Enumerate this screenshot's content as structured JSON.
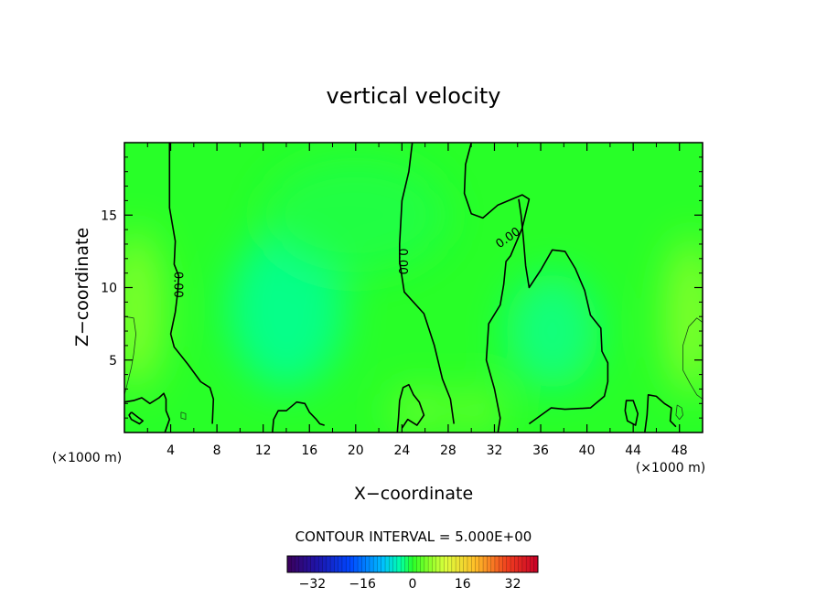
{
  "chart_data": {
    "type": "contour",
    "title": "vertical velocity",
    "xlabel": "X−coordinate",
    "ylabel": "Z−coordinate",
    "x_unit_left": "(×1000 m)",
    "x_unit_right": "(×1000 m)",
    "xlim": [
      0,
      50
    ],
    "ylim": [
      0,
      20
    ],
    "x_ticks": [
      4,
      8,
      12,
      16,
      20,
      24,
      28,
      32,
      36,
      40,
      44,
      48
    ],
    "x_tick_labels": [
      "4",
      "8",
      "12",
      "16",
      "20",
      "24",
      "28",
      "32",
      "36",
      "40",
      "44",
      "48"
    ],
    "y_ticks": [
      5,
      10,
      15
    ],
    "y_tick_labels": [
      "5",
      "10",
      "15"
    ],
    "contour_labels": [
      {
        "text": "0.00",
        "x": 4.6,
        "z": 10.2,
        "rotate": 90
      },
      {
        "text": "0.00",
        "x": 24.0,
        "z": 11.8,
        "rotate": 90
      },
      {
        "text": "0.00",
        "x": 33.2,
        "z": 13.4,
        "rotate": -35
      }
    ],
    "zero_contours": [
      [
        [
          3.9,
          20
        ],
        [
          3.9,
          15.5
        ],
        [
          4.4,
          13.2
        ],
        [
          4.3,
          11.6
        ],
        [
          4.7,
          10.8
        ],
        [
          4.6,
          9.6
        ],
        [
          4.4,
          8.3
        ],
        [
          4.0,
          6.8
        ],
        [
          4.3,
          5.9
        ],
        [
          5.5,
          4.7
        ],
        [
          6.6,
          3.5
        ],
        [
          7.4,
          3.1
        ],
        [
          7.7,
          2.3
        ],
        [
          7.6,
          0.6
        ]
      ],
      [
        [
          24.9,
          20
        ],
        [
          24.6,
          18
        ],
        [
          24.0,
          16
        ],
        [
          23.8,
          13
        ],
        [
          23.8,
          11.8
        ],
        [
          24.2,
          9.7
        ],
        [
          25.9,
          8.2
        ],
        [
          26.8,
          6.0
        ],
        [
          27.5,
          3.7
        ],
        [
          28.2,
          2.3
        ],
        [
          28.5,
          0.6
        ]
      ],
      [
        [
          30.0,
          20
        ],
        [
          29.5,
          18.5
        ],
        [
          29.4,
          16.5
        ],
        [
          30.0,
          15.1
        ],
        [
          31.0,
          14.8
        ],
        [
          32.3,
          15.7
        ],
        [
          34.4,
          16.4
        ],
        [
          35.0,
          16.1
        ],
        [
          34.4,
          14.1
        ],
        [
          33.4,
          12.2
        ],
        [
          33.0,
          11.8
        ],
        [
          32.8,
          10.2
        ],
        [
          32.5,
          8.8
        ],
        [
          31.5,
          7.5
        ],
        [
          31.3,
          5.0
        ],
        [
          32.0,
          3.0
        ],
        [
          32.5,
          1.0
        ],
        [
          32.3,
          0
        ]
      ],
      [
        [
          34.1,
          16.1
        ],
        [
          34.3,
          15
        ],
        [
          34.5,
          13.4
        ],
        [
          34.7,
          11.5
        ],
        [
          35.0,
          10.0
        ],
        [
          36.0,
          11.2
        ],
        [
          37.0,
          12.6
        ],
        [
          38.1,
          12.5
        ],
        [
          39.0,
          11.3
        ],
        [
          39.8,
          9.8
        ],
        [
          40.3,
          8.1
        ],
        [
          41.2,
          7.2
        ],
        [
          41.3,
          5.6
        ],
        [
          41.8,
          4.8
        ],
        [
          41.8,
          3.5
        ],
        [
          41.5,
          2.5
        ],
        [
          40.3,
          1.7
        ],
        [
          38.1,
          1.6
        ],
        [
          36.9,
          1.7
        ],
        [
          35.0,
          0.6
        ]
      ],
      [
        [
          0,
          2.1
        ],
        [
          0.8,
          2.2
        ],
        [
          1.5,
          2.4
        ],
        [
          2.2,
          2.0
        ],
        [
          3.0,
          2.4
        ],
        [
          3.4,
          2.7
        ],
        [
          3.6,
          2.3
        ],
        [
          3.6,
          1.5
        ],
        [
          3.9,
          0.9
        ],
        [
          3.5,
          0
        ]
      ],
      [
        [
          0.6,
          1.4
        ],
        [
          1.1,
          1.1
        ],
        [
          1.6,
          0.8
        ],
        [
          1.3,
          0.6
        ],
        [
          0.6,
          0.9
        ],
        [
          0.4,
          1.2
        ],
        [
          0.6,
          1.4
        ]
      ],
      [
        [
          12.8,
          0
        ],
        [
          12.9,
          0.9
        ],
        [
          13.3,
          1.5
        ],
        [
          14.0,
          1.5
        ],
        [
          14.9,
          2.1
        ],
        [
          15.6,
          2.0
        ],
        [
          16.0,
          1.4
        ],
        [
          16.6,
          0.9
        ],
        [
          16.9,
          0.6
        ],
        [
          17.3,
          0.5
        ]
      ],
      [
        [
          23.6,
          0
        ],
        [
          23.7,
          1.0
        ],
        [
          23.8,
          2.2
        ],
        [
          24.1,
          3.1
        ],
        [
          24.6,
          3.3
        ],
        [
          25.0,
          2.6
        ],
        [
          25.5,
          2.1
        ],
        [
          25.9,
          1.2
        ],
        [
          25.3,
          0.5
        ],
        [
          24.5,
          0.9
        ],
        [
          24.0,
          0.3
        ]
      ],
      [
        [
          43.3,
          1.5
        ],
        [
          43.4,
          2.2
        ],
        [
          44.0,
          2.2
        ],
        [
          44.4,
          1.3
        ],
        [
          44.2,
          0.5
        ],
        [
          43.5,
          0.8
        ],
        [
          43.3,
          1.5
        ]
      ],
      [
        [
          45.0,
          0
        ],
        [
          45.2,
          1.2
        ],
        [
          45.3,
          2.6
        ],
        [
          46.0,
          2.5
        ],
        [
          46.7,
          2.0
        ],
        [
          47.3,
          1.7
        ],
        [
          47.2,
          0.8
        ],
        [
          47.7,
          0.4
        ]
      ]
    ],
    "thin_contours": [
      [
        [
          0,
          8.0
        ],
        [
          0.8,
          7.9
        ],
        [
          1.0,
          6.8
        ],
        [
          0.8,
          5.4
        ],
        [
          0.6,
          4.5
        ],
        [
          0.2,
          3.2
        ],
        [
          0,
          2.6
        ]
      ],
      [
        [
          50,
          7.6
        ],
        [
          49.5,
          7.9
        ],
        [
          48.8,
          7.3
        ],
        [
          48.3,
          6.0
        ],
        [
          48.3,
          4.3
        ],
        [
          48.9,
          3.4
        ],
        [
          49.5,
          2.6
        ],
        [
          50,
          2.3
        ]
      ],
      [
        [
          47.8,
          1.9
        ],
        [
          48.2,
          1.7
        ],
        [
          48.3,
          1.2
        ],
        [
          48.0,
          0.9
        ],
        [
          47.7,
          1.2
        ],
        [
          47.8,
          1.9
        ]
      ],
      [
        [
          4.9,
          1.4
        ],
        [
          5.3,
          1.3
        ],
        [
          5.3,
          0.9
        ],
        [
          4.9,
          1.0
        ],
        [
          4.9,
          1.4
        ]
      ]
    ],
    "color_fields": [
      {
        "x": 1.0,
        "z": 8.5,
        "sx": 2.2,
        "sz": 5.5,
        "value": 6
      },
      {
        "x": 49.0,
        "z": 8.0,
        "sx": 2.2,
        "sz": 5.5,
        "value": 6
      },
      {
        "x": 14.0,
        "z": 8.5,
        "sx": 5.0,
        "sz": 5.5,
        "value": -3.5
      },
      {
        "x": 37.0,
        "z": 7.0,
        "sx": 4.0,
        "sz": 4.0,
        "value": -3
      },
      {
        "x": 25.5,
        "z": 1.5,
        "sx": 2.5,
        "sz": 1.5,
        "value": 4
      },
      {
        "x": 30.5,
        "z": 1.5,
        "sx": 2.0,
        "sz": 1.5,
        "value": 4
      },
      {
        "x": 20.0,
        "z": 15.0,
        "sx": 8.0,
        "sz": 4.0,
        "value": -1
      }
    ],
    "colorbar": {
      "title": "CONTOUR INTERVAL = 5.000E+00",
      "min": -40,
      "max": 40,
      "ticks": [
        -32,
        -16,
        0,
        16,
        32
      ],
      "tick_labels": [
        "−32",
        "−16",
        "0",
        "16",
        "32"
      ]
    }
  }
}
